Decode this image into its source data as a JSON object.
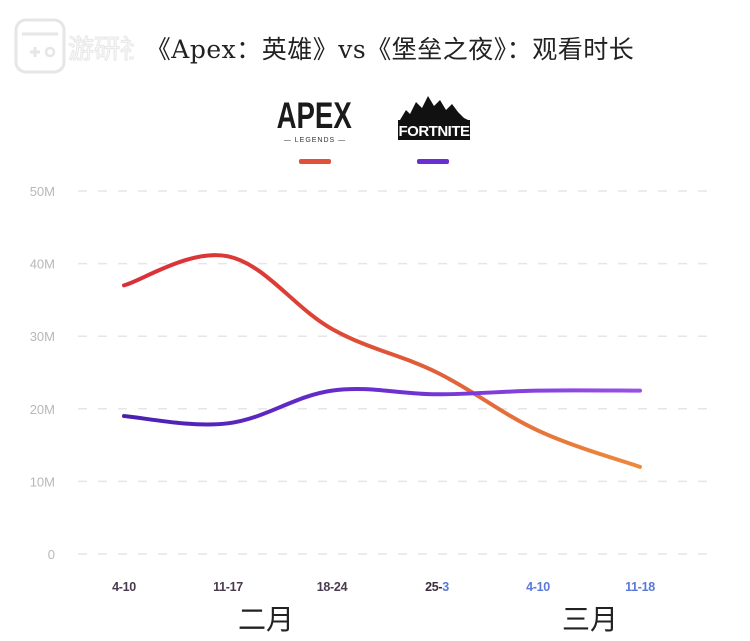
{
  "title": "《Apex：英雄》vs《堡垒之夜》：观看时长",
  "watermark": {
    "text": "游研社",
    "icon": "gamepad-icon"
  },
  "legend": [
    {
      "name": "APEX LEGENDS",
      "logo_main": "APEX",
      "logo_sub": "— LEGENDS —",
      "color": "#e0503a"
    },
    {
      "name": "FORTNITE",
      "logo_main": "FORTNITE",
      "color": "#6a2fd0"
    }
  ],
  "x_labels": [
    {
      "label": "4-10",
      "parts": [
        {
          "text": "4-10",
          "color": "#4a3a4e"
        }
      ]
    },
    {
      "label": "11-17",
      "parts": [
        {
          "text": "11-17",
          "color": "#4a3a4e"
        }
      ]
    },
    {
      "label": "18-24",
      "parts": [
        {
          "text": "18-24",
          "color": "#4a3a4e"
        }
      ]
    },
    {
      "label": "25-3",
      "parts": [
        {
          "text": "25-",
          "color": "#3a2e3e"
        },
        {
          "text": "3",
          "color": "#5a78d8"
        }
      ]
    },
    {
      "label": "4-10",
      "parts": [
        {
          "text": "4-10",
          "color": "#5a78d8"
        }
      ]
    },
    {
      "label": "11-18",
      "parts": [
        {
          "text": "11-18",
          "color": "#5a78d8"
        }
      ]
    }
  ],
  "months": [
    {
      "label": "二月"
    },
    {
      "label": "三月"
    }
  ],
  "y_labels": [
    "50M",
    "40M",
    "30M",
    "20M",
    "10M",
    "0"
  ],
  "chart_data": {
    "type": "line",
    "title": "《Apex：英雄》vs《堡垒之夜》：观看时长",
    "xlabel": "",
    "ylabel": "",
    "categories": [
      "2月 4-10",
      "2月 11-17",
      "2月 18-24",
      "2月25-3月3",
      "3月 4-10",
      "3月 11-18"
    ],
    "x_tick_labels": [
      "4-10",
      "11-17",
      "18-24",
      "25-3",
      "4-10",
      "11-18"
    ],
    "x_group_labels": [
      "二月",
      "三月"
    ],
    "series": [
      {
        "name": "Apex Legends",
        "color": "#e0503a",
        "values": [
          37,
          41,
          31,
          25,
          17,
          12
        ]
      },
      {
        "name": "Fortnite",
        "color": "#6a2fd0",
        "values": [
          19,
          18,
          22.5,
          22,
          22.5,
          22.5
        ]
      }
    ],
    "ylim": [
      0,
      50
    ],
    "y_ticks": [
      0,
      10,
      20,
      30,
      40,
      50
    ],
    "y_tick_labels": [
      "0",
      "10M",
      "20M",
      "30M",
      "40M",
      "50M"
    ],
    "grid": true,
    "grid_style": "dashed horizontal",
    "legend_position": "top-center"
  }
}
